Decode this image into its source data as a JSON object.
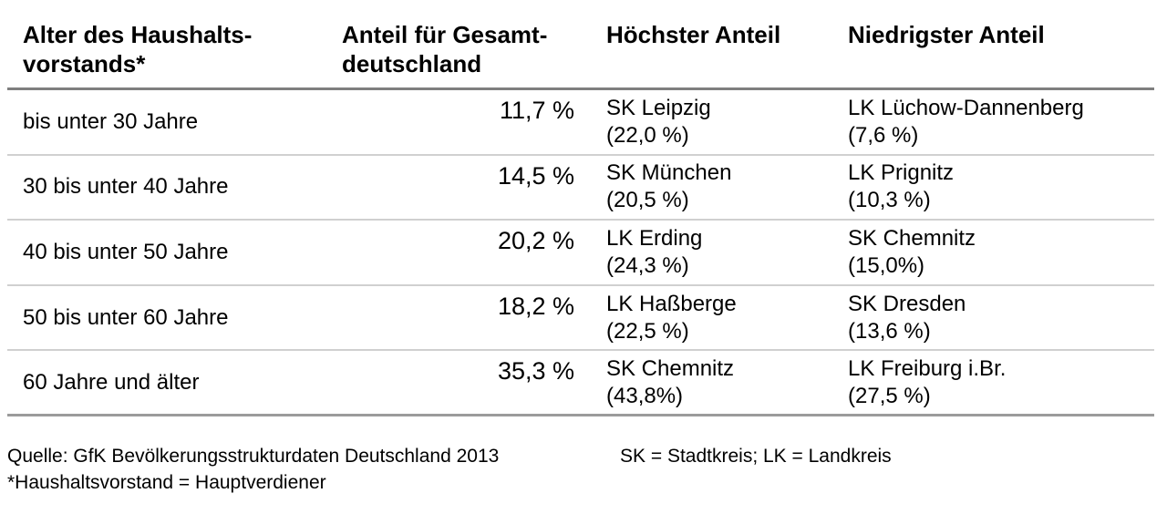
{
  "table": {
    "columns": [
      {
        "label_line1": "Alter des Haushalts-",
        "label_line2": "vorstands*"
      },
      {
        "label_line1": "Anteil für Gesamt-",
        "label_line2": "deutschland"
      },
      {
        "label_line1": "Höchster Anteil",
        "label_line2": ""
      },
      {
        "label_line1": "Niedrigster Anteil",
        "label_line2": ""
      }
    ],
    "rows": [
      {
        "age": "bis unter 30 Jahre",
        "share": "11,7 %",
        "highest_name": "SK Leipzig",
        "highest_value": "(22,0 %)",
        "lowest_name": "LK Lüchow-Dannenberg",
        "lowest_value": "(7,6 %)"
      },
      {
        "age": "30 bis unter 40 Jahre",
        "share": "14,5 %",
        "highest_name": "SK München",
        "highest_value": "(20,5 %)",
        "lowest_name": "LK Prignitz",
        "lowest_value": "(10,3 %)"
      },
      {
        "age": "40 bis unter 50 Jahre",
        "share": "20,2 %",
        "highest_name": "LK Erding",
        "highest_value": "(24,3 %)",
        "lowest_name": "SK Chemnitz",
        "lowest_value": "(15,0%)"
      },
      {
        "age": "50 bis unter 60 Jahre",
        "share": "18,2 %",
        "highest_name": "LK Haßberge",
        "highest_value": "(22,5 %)",
        "lowest_name": "SK Dresden",
        "lowest_value": "(13,6 %)"
      },
      {
        "age": "60 Jahre und älter",
        "share": "35,3 %",
        "highest_name": "SK Chemnitz",
        "highest_value": "(43,8%)",
        "lowest_name": "LK Freiburg i.Br.",
        "lowest_value": "(27,5 %)"
      }
    ]
  },
  "footer": {
    "source": "Quelle: GfK Bevölkerungsstrukturdaten Deutschland 2013",
    "note": "*Haushaltsvorstand = Hauptverdiener",
    "legend": "SK = Stadtkreis; LK = Landkreis"
  },
  "colors": {
    "header_rule": "#7f7f7f",
    "row_rule": "#d0d0d0",
    "bottom_rule": "#9b9b9b",
    "text": "#000000",
    "background": "#ffffff"
  },
  "chart_data": {
    "type": "table",
    "title": "",
    "column_headers": [
      "Alter des Haushaltsvorstands*",
      "Anteil für Gesamtdeutschland",
      "Höchster Anteil",
      "Niedrigster Anteil"
    ],
    "categories": [
      "bis unter 30 Jahre",
      "30 bis unter 40 Jahre",
      "40 bis unter 50 Jahre",
      "50 bis unter 60 Jahre",
      "60 Jahre und älter"
    ],
    "series": [
      {
        "name": "Anteil für Gesamtdeutschland (%)",
        "values": [
          11.7,
          14.5,
          20.2,
          18.2,
          35.3
        ]
      },
      {
        "name": "Höchster Anteil (%)",
        "values": [
          22.0,
          20.5,
          24.3,
          22.5,
          43.8
        ],
        "labels": [
          "SK Leipzig",
          "SK München",
          "LK Erding",
          "LK Haßberge",
          "SK Chemnitz"
        ]
      },
      {
        "name": "Niedrigster Anteil (%)",
        "values": [
          7.6,
          10.3,
          15.0,
          13.6,
          27.5
        ],
        "labels": [
          "LK Lüchow-Dannenberg",
          "LK Prignitz",
          "SK Chemnitz",
          "SK Dresden",
          "LK Freiburg i.Br."
        ]
      }
    ]
  }
}
